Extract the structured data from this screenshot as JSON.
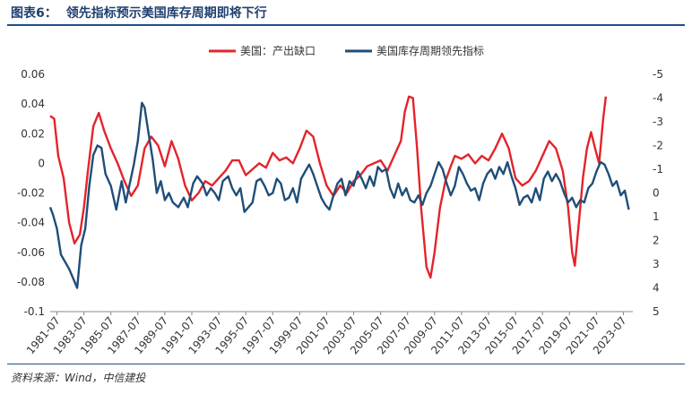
{
  "figure": {
    "label": "图表6：",
    "title": "领先指标预示美国库存周期即将下行",
    "source": "资料来源：Wind，中信建投"
  },
  "chart_data": {
    "type": "line",
    "title": "领先指标预示美国库存周期即将下行",
    "legend_position": "top-center",
    "grid": false,
    "x_ticks": [
      "1981-07",
      "1983-07",
      "1985-07",
      "1987-07",
      "1989-07",
      "1991-07",
      "1993-07",
      "1995-07",
      "1997-07",
      "1999-07",
      "2001-07",
      "2003-07",
      "2005-07",
      "2007-07",
      "2009-07",
      "2011-07",
      "2013-07",
      "2015-07",
      "2017-07",
      "2019-07",
      "2021-07",
      "2023-07"
    ],
    "xlim": [
      1981.0,
      2024.2
    ],
    "y_left": {
      "ylim": [
        -0.1,
        0.06
      ],
      "ticks": [
        "0.06",
        "0.04",
        "0.02",
        "0",
        "-0.02",
        "-0.04",
        "-0.06",
        "-0.08",
        "-0.1"
      ],
      "tick_values": [
        0.06,
        0.04,
        0.02,
        0,
        -0.02,
        -0.04,
        -0.06,
        -0.08,
        -0.1
      ]
    },
    "y_right": {
      "ylim": [
        -5,
        5
      ],
      "inverted": true,
      "ticks": [
        "-5",
        "-4",
        "-3",
        "-2",
        "-1",
        "0",
        "1",
        "2",
        "3",
        "4",
        "5"
      ],
      "tick_values": [
        -5,
        -4,
        -3,
        -2,
        -1,
        0,
        1,
        2,
        3,
        4,
        5
      ]
    },
    "series": [
      {
        "name": "美国：产出缺口",
        "axis": "left",
        "color": "#e3242b",
        "points": [
          [
            1981.0,
            0.032
          ],
          [
            1981.3,
            0.03
          ],
          [
            1981.6,
            0.005
          ],
          [
            1982.0,
            -0.01
          ],
          [
            1982.4,
            -0.04
          ],
          [
            1982.8,
            -0.054
          ],
          [
            1983.2,
            -0.048
          ],
          [
            1983.5,
            -0.03
          ],
          [
            1983.8,
            -0.005
          ],
          [
            1984.2,
            0.025
          ],
          [
            1984.6,
            0.034
          ],
          [
            1985.0,
            0.022
          ],
          [
            1985.5,
            0.01
          ],
          [
            1986.0,
            0.0
          ],
          [
            1986.5,
            -0.012
          ],
          [
            1987.0,
            -0.022
          ],
          [
            1987.5,
            -0.015
          ],
          [
            1988.0,
            0.01
          ],
          [
            1988.5,
            0.018
          ],
          [
            1989.0,
            0.012
          ],
          [
            1989.5,
            -0.002
          ],
          [
            1990.0,
            0.015
          ],
          [
            1990.5,
            0.003
          ],
          [
            1991.0,
            -0.015
          ],
          [
            1991.5,
            -0.025
          ],
          [
            1992.0,
            -0.02
          ],
          [
            1992.5,
            -0.012
          ],
          [
            1993.0,
            -0.015
          ],
          [
            1993.5,
            -0.01
          ],
          [
            1994.0,
            -0.005
          ],
          [
            1994.5,
            0.002
          ],
          [
            1995.0,
            0.002
          ],
          [
            1995.5,
            -0.008
          ],
          [
            1996.0,
            -0.004
          ],
          [
            1996.5,
            0.0
          ],
          [
            1997.0,
            -0.003
          ],
          [
            1997.5,
            0.007
          ],
          [
            1998.0,
            0.002
          ],
          [
            1998.5,
            0.004
          ],
          [
            1999.0,
            0.0
          ],
          [
            1999.5,
            0.01
          ],
          [
            2000.0,
            0.022
          ],
          [
            2000.5,
            0.018
          ],
          [
            2001.0,
            0.0
          ],
          [
            2001.5,
            -0.015
          ],
          [
            2002.0,
            -0.022
          ],
          [
            2002.5,
            -0.015
          ],
          [
            2003.0,
            -0.02
          ],
          [
            2003.5,
            -0.012
          ],
          [
            2004.0,
            -0.008
          ],
          [
            2004.5,
            -0.002
          ],
          [
            2005.0,
            0.0
          ],
          [
            2005.5,
            0.002
          ],
          [
            2006.0,
            -0.005
          ],
          [
            2006.5,
            0.005
          ],
          [
            2007.0,
            0.015
          ],
          [
            2007.3,
            0.035
          ],
          [
            2007.6,
            0.045
          ],
          [
            2007.9,
            0.044
          ],
          [
            2008.2,
            0.01
          ],
          [
            2008.5,
            -0.03
          ],
          [
            2008.9,
            -0.07
          ],
          [
            2009.2,
            -0.077
          ],
          [
            2009.5,
            -0.06
          ],
          [
            2009.9,
            -0.03
          ],
          [
            2010.3,
            -0.012
          ],
          [
            2010.7,
            -0.002
          ],
          [
            2011.0,
            0.005
          ],
          [
            2011.5,
            0.003
          ],
          [
            2012.0,
            0.006
          ],
          [
            2012.5,
            0.0
          ],
          [
            2013.0,
            0.005
          ],
          [
            2013.5,
            0.002
          ],
          [
            2014.0,
            0.01
          ],
          [
            2014.5,
            0.02
          ],
          [
            2015.0,
            0.01
          ],
          [
            2015.5,
            -0.01
          ],
          [
            2016.0,
            -0.015
          ],
          [
            2016.5,
            -0.012
          ],
          [
            2017.0,
            -0.005
          ],
          [
            2017.5,
            0.005
          ],
          [
            2018.0,
            0.015
          ],
          [
            2018.5,
            0.01
          ],
          [
            2019.0,
            -0.005
          ],
          [
            2019.4,
            -0.03
          ],
          [
            2019.7,
            -0.06
          ],
          [
            2019.9,
            -0.069
          ],
          [
            2020.2,
            -0.04
          ],
          [
            2020.5,
            -0.01
          ],
          [
            2020.8,
            0.01
          ],
          [
            2021.1,
            0.021
          ],
          [
            2021.4,
            0.01
          ],
          [
            2021.7,
            0.0
          ],
          [
            2022.0,
            0.03
          ],
          [
            2022.2,
            0.045
          ]
        ]
      },
      {
        "name": "美国库存周期领先指标",
        "axis": "right",
        "color": "#1f4e79",
        "points": [
          [
            1981.0,
            0.6
          ],
          [
            1981.2,
            0.9
          ],
          [
            1981.5,
            1.5
          ],
          [
            1981.8,
            2.6
          ],
          [
            1982.1,
            2.9
          ],
          [
            1982.4,
            3.2
          ],
          [
            1982.7,
            3.6
          ],
          [
            1983.0,
            4.0
          ],
          [
            1983.3,
            2.2
          ],
          [
            1983.6,
            1.5
          ],
          [
            1983.9,
            -0.3
          ],
          [
            1984.2,
            -1.6
          ],
          [
            1984.5,
            -2.0
          ],
          [
            1984.8,
            -1.9
          ],
          [
            1985.1,
            -0.8
          ],
          [
            1985.5,
            -0.3
          ],
          [
            1985.9,
            0.7
          ],
          [
            1986.3,
            -0.5
          ],
          [
            1986.6,
            0.4
          ],
          [
            1986.9,
            -0.4
          ],
          [
            1987.2,
            -1.2
          ],
          [
            1987.5,
            -2.2
          ],
          [
            1987.8,
            -3.8
          ],
          [
            1988.0,
            -3.6
          ],
          [
            1988.3,
            -2.5
          ],
          [
            1988.6,
            -1.4
          ],
          [
            1988.9,
            0.0
          ],
          [
            1989.2,
            -0.5
          ],
          [
            1989.5,
            0.3
          ],
          [
            1989.8,
            0.0
          ],
          [
            1990.1,
            0.4
          ],
          [
            1990.5,
            0.6
          ],
          [
            1990.9,
            0.2
          ],
          [
            1991.2,
            0.6
          ],
          [
            1991.6,
            -0.4
          ],
          [
            1991.9,
            -0.7
          ],
          [
            1992.3,
            -0.4
          ],
          [
            1992.6,
            0.1
          ],
          [
            1992.9,
            -0.2
          ],
          [
            1993.2,
            0.0
          ],
          [
            1993.5,
            0.3
          ],
          [
            1993.8,
            -0.5
          ],
          [
            1994.2,
            -0.7
          ],
          [
            1994.5,
            -0.2
          ],
          [
            1994.8,
            0.1
          ],
          [
            1995.1,
            -0.2
          ],
          [
            1995.4,
            0.8
          ],
          [
            1995.7,
            0.6
          ],
          [
            1996.0,
            0.4
          ],
          [
            1996.3,
            -0.5
          ],
          [
            1996.6,
            -0.6
          ],
          [
            1996.9,
            -0.3
          ],
          [
            1997.2,
            0.1
          ],
          [
            1997.5,
            0.0
          ],
          [
            1997.8,
            -0.6
          ],
          [
            1998.1,
            -0.4
          ],
          [
            1998.4,
            0.3
          ],
          [
            1998.7,
            0.2
          ],
          [
            1999.0,
            -0.2
          ],
          [
            1999.3,
            0.4
          ],
          [
            1999.6,
            -0.6
          ],
          [
            1999.9,
            -0.9
          ],
          [
            2000.2,
            -1.2
          ],
          [
            2000.5,
            -0.8
          ],
          [
            2000.8,
            -0.3
          ],
          [
            2001.1,
            0.2
          ],
          [
            2001.4,
            0.5
          ],
          [
            2001.7,
            0.7
          ],
          [
            2002.0,
            0.1
          ],
          [
            2002.3,
            -0.4
          ],
          [
            2002.6,
            -0.6
          ],
          [
            2002.9,
            0.1
          ],
          [
            2003.2,
            -0.5
          ],
          [
            2003.5,
            -0.3
          ],
          [
            2003.8,
            -0.9
          ],
          [
            2004.1,
            -0.6
          ],
          [
            2004.4,
            -0.2
          ],
          [
            2004.7,
            -0.7
          ],
          [
            2005.0,
            -0.3
          ],
          [
            2005.3,
            -1.1
          ],
          [
            2005.6,
            -0.9
          ],
          [
            2005.9,
            -1.0
          ],
          [
            2006.2,
            -0.2
          ],
          [
            2006.5,
            0.2
          ],
          [
            2006.8,
            -0.4
          ],
          [
            2007.1,
            0.1
          ],
          [
            2007.4,
            -0.2
          ],
          [
            2007.7,
            0.3
          ],
          [
            2008.0,
            0.4
          ],
          [
            2008.3,
            0.1
          ],
          [
            2008.6,
            0.5
          ],
          [
            2008.9,
            0.0
          ],
          [
            2009.2,
            -0.3
          ],
          [
            2009.5,
            -0.8
          ],
          [
            2009.8,
            -1.3
          ],
          [
            2010.1,
            -1.0
          ],
          [
            2010.4,
            -0.4
          ],
          [
            2010.7,
            0.1
          ],
          [
            2011.0,
            -0.3
          ],
          [
            2011.3,
            -1.1
          ],
          [
            2011.6,
            -0.8
          ],
          [
            2011.9,
            -0.4
          ],
          [
            2012.2,
            -0.1
          ],
          [
            2012.5,
            -0.2
          ],
          [
            2012.8,
            0.3
          ],
          [
            2013.1,
            -0.4
          ],
          [
            2013.4,
            -0.8
          ],
          [
            2013.7,
            -1.0
          ],
          [
            2014.0,
            -0.6
          ],
          [
            2014.3,
            -1.1
          ],
          [
            2014.6,
            -0.8
          ],
          [
            2014.9,
            -1.3
          ],
          [
            2015.2,
            -0.7
          ],
          [
            2015.5,
            -0.2
          ],
          [
            2015.8,
            0.5
          ],
          [
            2016.1,
            0.2
          ],
          [
            2016.4,
            0.1
          ],
          [
            2016.7,
            0.4
          ],
          [
            2017.0,
            -0.2
          ],
          [
            2017.3,
            0.3
          ],
          [
            2017.6,
            -0.6
          ],
          [
            2017.9,
            -0.9
          ],
          [
            2018.2,
            -0.5
          ],
          [
            2018.5,
            -0.8
          ],
          [
            2018.8,
            -0.5
          ],
          [
            2019.1,
            0.0
          ],
          [
            2019.4,
            0.4
          ],
          [
            2019.7,
            0.2
          ],
          [
            2020.0,
            0.6
          ],
          [
            2020.3,
            0.3
          ],
          [
            2020.6,
            0.4
          ],
          [
            2020.9,
            -0.2
          ],
          [
            2021.2,
            -0.4
          ],
          [
            2021.5,
            -0.9
          ],
          [
            2021.8,
            -1.3
          ],
          [
            2022.1,
            -1.2
          ],
          [
            2022.4,
            -0.8
          ],
          [
            2022.7,
            -0.3
          ],
          [
            2023.0,
            -0.5
          ],
          [
            2023.3,
            0.1
          ],
          [
            2023.6,
            -0.1
          ],
          [
            2023.9,
            0.7
          ]
        ]
      }
    ]
  }
}
